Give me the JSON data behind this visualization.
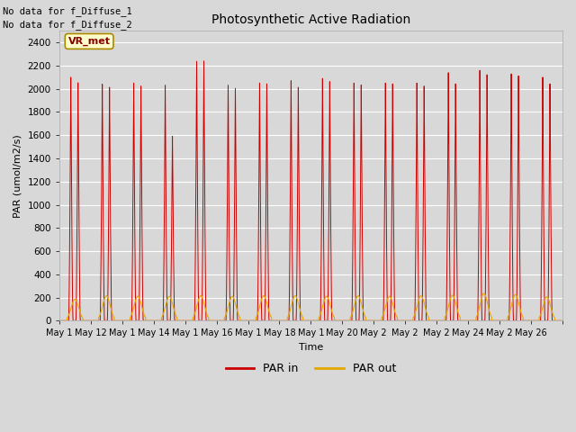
{
  "title": "Photosynthetic Active Radiation",
  "xlabel": "Time",
  "ylabel": "PAR (umol/m2/s)",
  "ylim": [
    0,
    2500
  ],
  "yticks": [
    0,
    200,
    400,
    600,
    800,
    1000,
    1200,
    1400,
    1600,
    1800,
    2000,
    2200,
    2400
  ],
  "fig_bg": "#d8d8d8",
  "plot_bg": "#d8d8d8",
  "text_annotations": [
    "No data for f_Diffuse_1",
    "No data for f_Diffuse_2"
  ],
  "legend_labels": [
    "PAR in",
    "PAR out"
  ],
  "par_in_color": "#cc0000",
  "par_out_color": "#e6a800",
  "vr_met_label": "VR_met",
  "vr_met_bg": "#ffffcc",
  "vr_met_border": "#aa8800",
  "n_days": 16,
  "daily_peak1_par_in": [
    2130,
    2070,
    2080,
    2060,
    2270,
    2060,
    2080,
    2100,
    2120,
    2080,
    2080,
    2080,
    2170,
    2190,
    2160,
    2130
  ],
  "daily_peak2_par_in": [
    2090,
    2050,
    2060,
    1620,
    2280,
    2040,
    2080,
    2050,
    2100,
    2070,
    2080,
    2060,
    2080,
    2160,
    2150,
    2080
  ],
  "daily_drop_par_in": [
    1620,
    1600,
    1640,
    400,
    1430,
    1600,
    1600,
    1480,
    1500,
    1550,
    1520,
    1530,
    610,
    430,
    800,
    855
  ],
  "daily_peak_par_out": [
    185,
    215,
    210,
    210,
    215,
    210,
    215,
    215,
    210,
    215,
    210,
    215,
    220,
    235,
    225,
    205
  ],
  "xticklabels": [
    "May 1",
    "May 12",
    "May 1",
    "May 14",
    "May 1",
    "May 16",
    "May 1",
    "May 18",
    "May 1",
    "May 20",
    "May 2",
    "May 2",
    "May 2",
    "May 24",
    "May 2",
    "May 26"
  ]
}
